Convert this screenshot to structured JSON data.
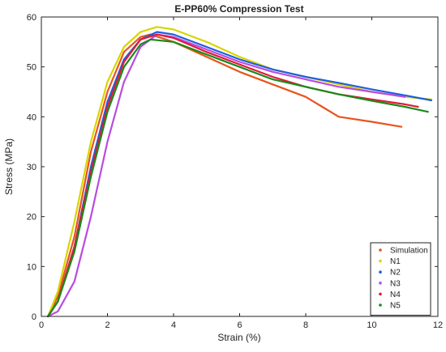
{
  "chart_data": {
    "type": "line",
    "title": "E-PP60% Compression Test",
    "xlabel": "Strain (%)",
    "ylabel": "Stress (MPa)",
    "xlim": [
      0,
      12
    ],
    "ylim": [
      0,
      60
    ],
    "xticks": [
      0,
      2,
      4,
      6,
      8,
      10,
      12
    ],
    "yticks": [
      0,
      10,
      20,
      30,
      40,
      50,
      60
    ],
    "legend_position": "bottom-right",
    "grid": false,
    "series": [
      {
        "name": "Simulation",
        "color": "#e8541c",
        "points": [
          [
            0.2,
            0
          ],
          [
            0.5,
            4
          ],
          [
            1,
            16
          ],
          [
            1.5,
            33
          ],
          [
            2,
            45
          ],
          [
            2.5,
            53
          ],
          [
            3,
            56
          ],
          [
            3.3,
            56.5
          ],
          [
            4,
            55
          ],
          [
            5,
            52
          ],
          [
            6,
            49
          ],
          [
            7,
            46.5
          ],
          [
            8,
            44
          ],
          [
            8.5,
            42
          ],
          [
            9,
            40
          ],
          [
            10,
            39
          ],
          [
            10.9,
            38
          ]
        ]
      },
      {
        "name": "N1",
        "color": "#d8d400",
        "points": [
          [
            0.2,
            0
          ],
          [
            0.5,
            5
          ],
          [
            1,
            19
          ],
          [
            1.5,
            35
          ],
          [
            2,
            47
          ],
          [
            2.5,
            54
          ],
          [
            3,
            57
          ],
          [
            3.5,
            58
          ],
          [
            4,
            57.5
          ],
          [
            5,
            55
          ],
          [
            6,
            52
          ],
          [
            7,
            49.5
          ],
          [
            8,
            48
          ],
          [
            9,
            46.5
          ],
          [
            10,
            45
          ],
          [
            11,
            44
          ],
          [
            11.8,
            43.5
          ]
        ]
      },
      {
        "name": "N2",
        "color": "#1f5fe0",
        "points": [
          [
            0.2,
            0
          ],
          [
            0.5,
            3
          ],
          [
            1,
            14
          ],
          [
            1.5,
            30
          ],
          [
            2,
            43
          ],
          [
            2.5,
            51.5
          ],
          [
            3,
            55.5
          ],
          [
            3.5,
            57
          ],
          [
            4,
            56.5
          ],
          [
            5,
            54
          ],
          [
            6,
            51.5
          ],
          [
            7,
            49.5
          ],
          [
            8,
            48
          ],
          [
            9,
            46.8
          ],
          [
            10,
            45.5
          ],
          [
            11,
            44.3
          ],
          [
            11.8,
            43.3
          ]
        ]
      },
      {
        "name": "N3",
        "color": "#b84ce0",
        "points": [
          [
            0.2,
            0
          ],
          [
            0.5,
            1
          ],
          [
            1,
            7
          ],
          [
            1.5,
            20
          ],
          [
            2,
            35
          ],
          [
            2.5,
            47
          ],
          [
            3,
            54
          ],
          [
            3.5,
            56.5
          ],
          [
            4,
            56
          ],
          [
            5,
            53.5
          ],
          [
            6,
            51
          ],
          [
            7,
            49
          ],
          [
            8,
            47.5
          ],
          [
            9,
            46
          ],
          [
            10,
            45
          ],
          [
            11,
            44
          ]
        ]
      },
      {
        "name": "N4",
        "color": "#e01a3a",
        "points": [
          [
            0.2,
            0
          ],
          [
            0.5,
            3
          ],
          [
            1,
            14
          ],
          [
            1.5,
            29
          ],
          [
            2,
            42
          ],
          [
            2.5,
            51
          ],
          [
            3,
            55.5
          ],
          [
            3.5,
            56.5
          ],
          [
            4,
            55.8
          ],
          [
            5,
            53
          ],
          [
            6,
            50.5
          ],
          [
            7,
            48
          ],
          [
            8,
            46
          ],
          [
            9,
            44.5
          ],
          [
            10,
            43.5
          ],
          [
            11,
            42.5
          ],
          [
            11.4,
            42
          ]
        ]
      },
      {
        "name": "N5",
        "color": "#1a8a1a",
        "points": [
          [
            0.2,
            0
          ],
          [
            0.5,
            3
          ],
          [
            1,
            13
          ],
          [
            1.5,
            28
          ],
          [
            2,
            41
          ],
          [
            2.5,
            50
          ],
          [
            3,
            54.5
          ],
          [
            3.3,
            55.5
          ],
          [
            4,
            55
          ],
          [
            5,
            52.5
          ],
          [
            6,
            50
          ],
          [
            7,
            47.5
          ],
          [
            8,
            46
          ],
          [
            9,
            44.5
          ],
          [
            10,
            43.2
          ],
          [
            11,
            42
          ],
          [
            11.7,
            41
          ]
        ]
      }
    ]
  }
}
